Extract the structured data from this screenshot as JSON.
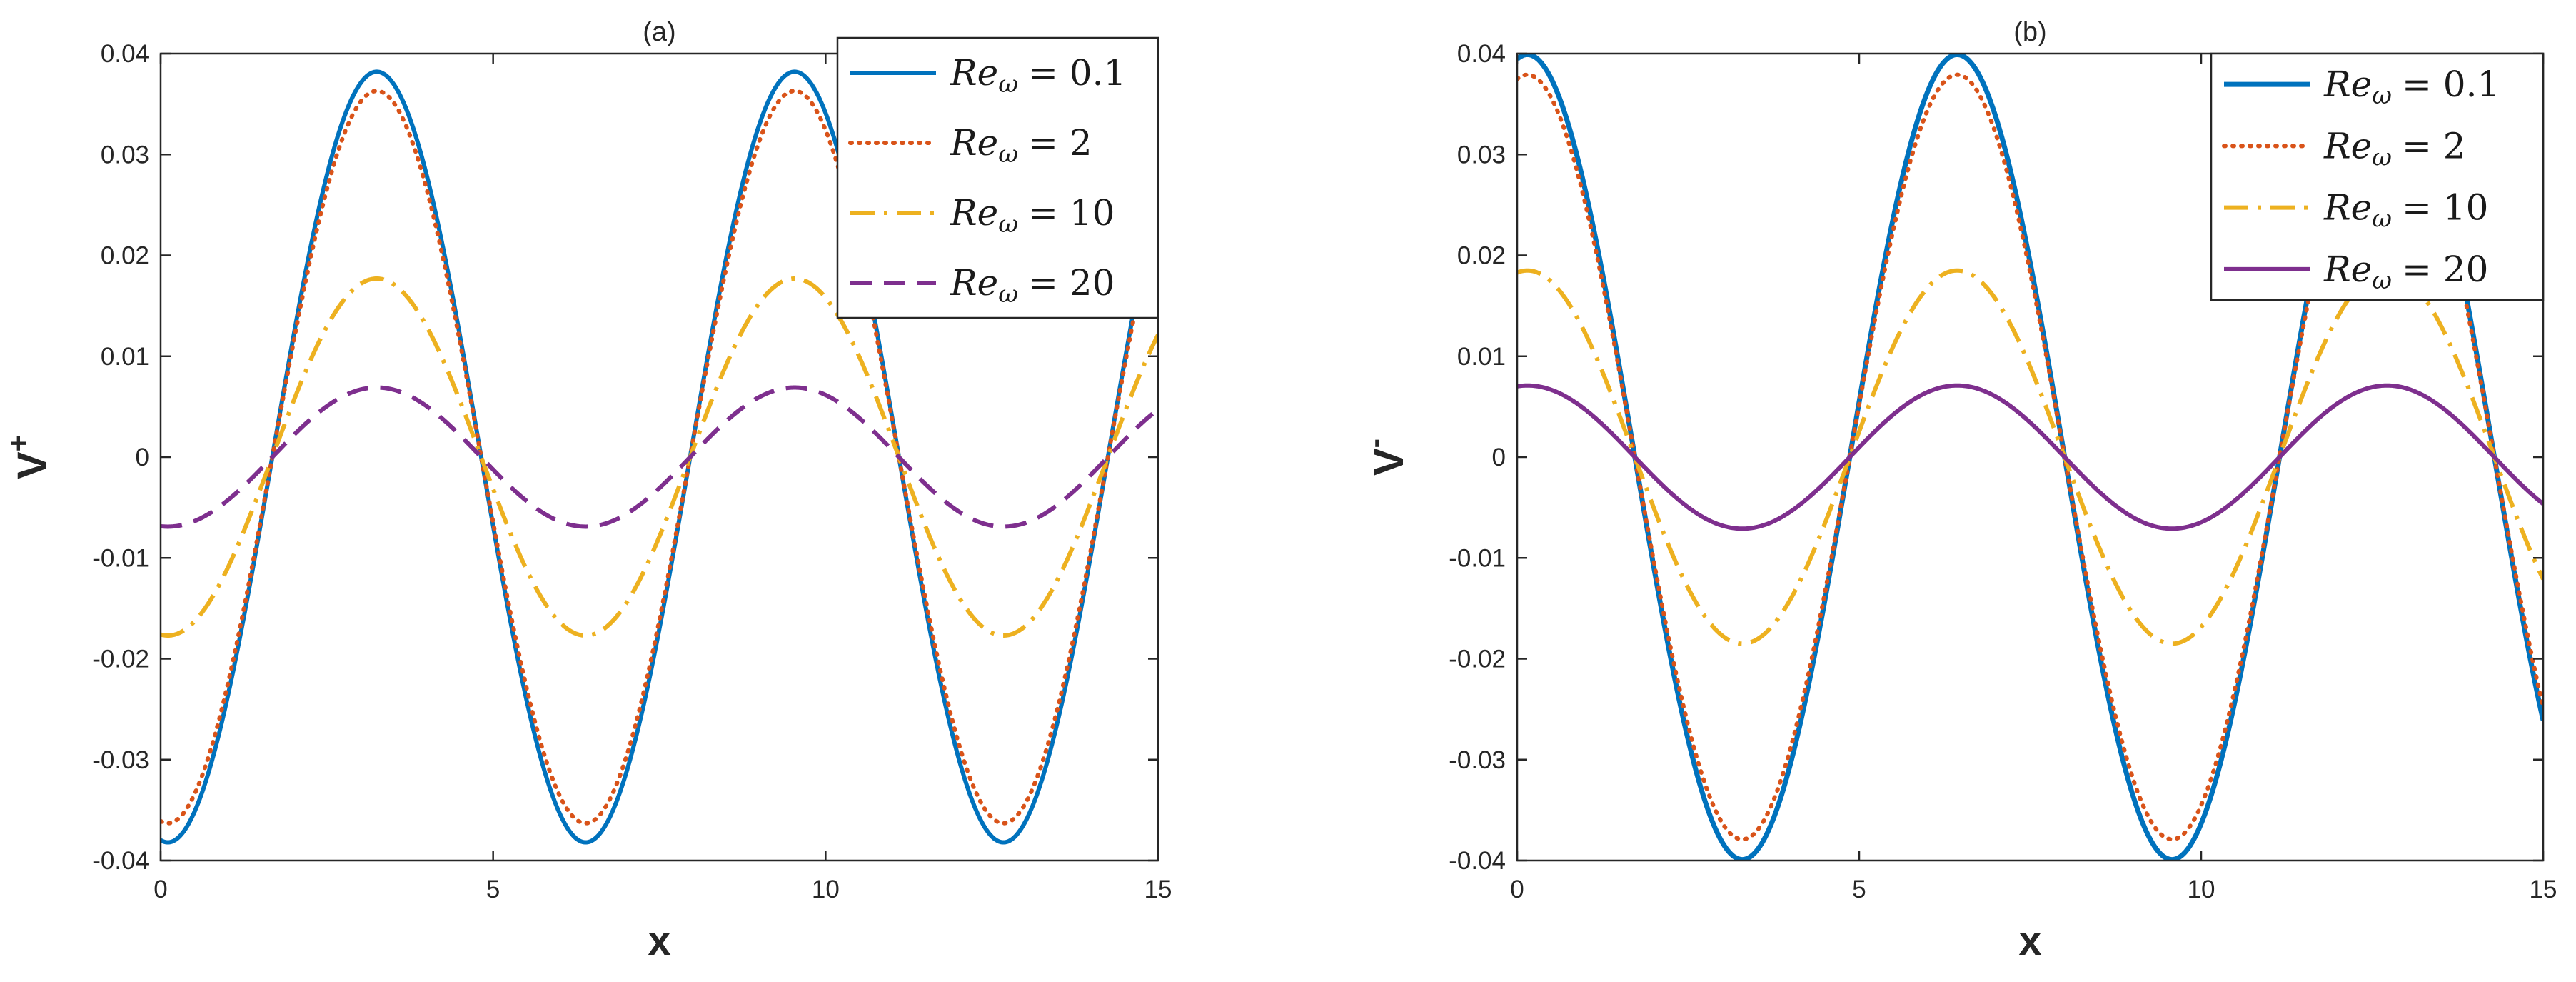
{
  "chart_data": [
    {
      "type": "line",
      "title": "(a)",
      "xlabel": "x",
      "ylabel": "V",
      "ylabel_superscript": "+",
      "xlim": [
        0,
        15
      ],
      "ylim": [
        -0.04,
        0.04
      ],
      "xticks": [
        0,
        5,
        10,
        15
      ],
      "xtick_labels": [
        "0",
        "5",
        "10",
        "15"
      ],
      "yticks": [
        -0.04,
        -0.03,
        -0.02,
        -0.01,
        0,
        0.01,
        0.02,
        0.03,
        0.04
      ],
      "ytick_labels": [
        "-0.04",
        "-0.03",
        "-0.02",
        "-0.01",
        "0",
        "0.01",
        "0.02",
        "0.03",
        "0.04"
      ],
      "grid": false,
      "legend_position": "top-right",
      "series": [
        {
          "name": "Re_ω = 0.1",
          "legend_prefix": "Re",
          "legend_sub": "ω",
          "legend_value": "= 0.1",
          "color": "#0072BD",
          "style": "solid",
          "width": 6,
          "amplitude": 0.0382,
          "period": 6.283,
          "phase": 3.25
        },
        {
          "name": "Re_ω = 2",
          "legend_prefix": "Re",
          "legend_sub": "ω",
          "legend_value": "= 2",
          "color": "#D95319",
          "style": "dotted",
          "width": 6,
          "amplitude": 0.0363,
          "period": 6.283,
          "phase": 3.25
        },
        {
          "name": "Re_ω = 10",
          "legend_prefix": "Re",
          "legend_sub": "ω",
          "legend_value": "= 10",
          "color": "#EDB120",
          "style": "dashdot",
          "width": 6,
          "amplitude": 0.0177,
          "period": 6.283,
          "phase": 3.25
        },
        {
          "name": "Re_ω = 20",
          "legend_prefix": "Re",
          "legend_sub": "ω",
          "legend_value": "= 20",
          "color": "#7E2F8E",
          "style": "dashed",
          "width": 6,
          "amplitude": 0.0069,
          "period": 6.283,
          "phase": 3.25
        }
      ]
    },
    {
      "type": "line",
      "title": "(b)",
      "xlabel": "x",
      "ylabel": "V",
      "ylabel_superscript": "-",
      "xlim": [
        0,
        15
      ],
      "ylim": [
        -0.04,
        0.04
      ],
      "xticks": [
        0,
        5,
        10,
        15
      ],
      "xtick_labels": [
        "0",
        "5",
        "10",
        "15"
      ],
      "yticks": [
        -0.04,
        -0.03,
        -0.02,
        -0.01,
        0,
        0.01,
        0.02,
        0.03,
        0.04
      ],
      "ytick_labels": [
        "-0.04",
        "-0.03",
        "-0.02",
        "-0.01",
        "0",
        "0.01",
        "0.02",
        "0.03",
        "0.04"
      ],
      "grid": false,
      "legend_position": "top-right",
      "series": [
        {
          "name": "Re_ω = 0.1",
          "legend_prefix": "Re",
          "legend_sub": "ω",
          "legend_value": "= 0.1",
          "color": "#0072BD",
          "style": "solid",
          "width": 7,
          "amplitude": 0.0399,
          "period": 6.283,
          "phase": 0.15
        },
        {
          "name": "Re_ω = 2",
          "legend_prefix": "Re",
          "legend_sub": "ω",
          "legend_value": "= 2",
          "color": "#D95319",
          "style": "dotted",
          "width": 6,
          "amplitude": 0.0379,
          "period": 6.283,
          "phase": 0.15
        },
        {
          "name": "Re_ω = 10",
          "legend_prefix": "Re",
          "legend_sub": "ω",
          "legend_value": "= 10",
          "color": "#EDB120",
          "style": "dashdot",
          "width": 6,
          "amplitude": 0.0185,
          "period": 6.283,
          "phase": 0.15
        },
        {
          "name": "Re_ω = 20",
          "legend_prefix": "Re",
          "legend_sub": "ω",
          "legend_value": "= 20",
          "color": "#7E2F8E",
          "style": "solid",
          "width": 6,
          "amplitude": 0.0071,
          "period": 6.283,
          "phase": 0.15
        }
      ]
    }
  ]
}
